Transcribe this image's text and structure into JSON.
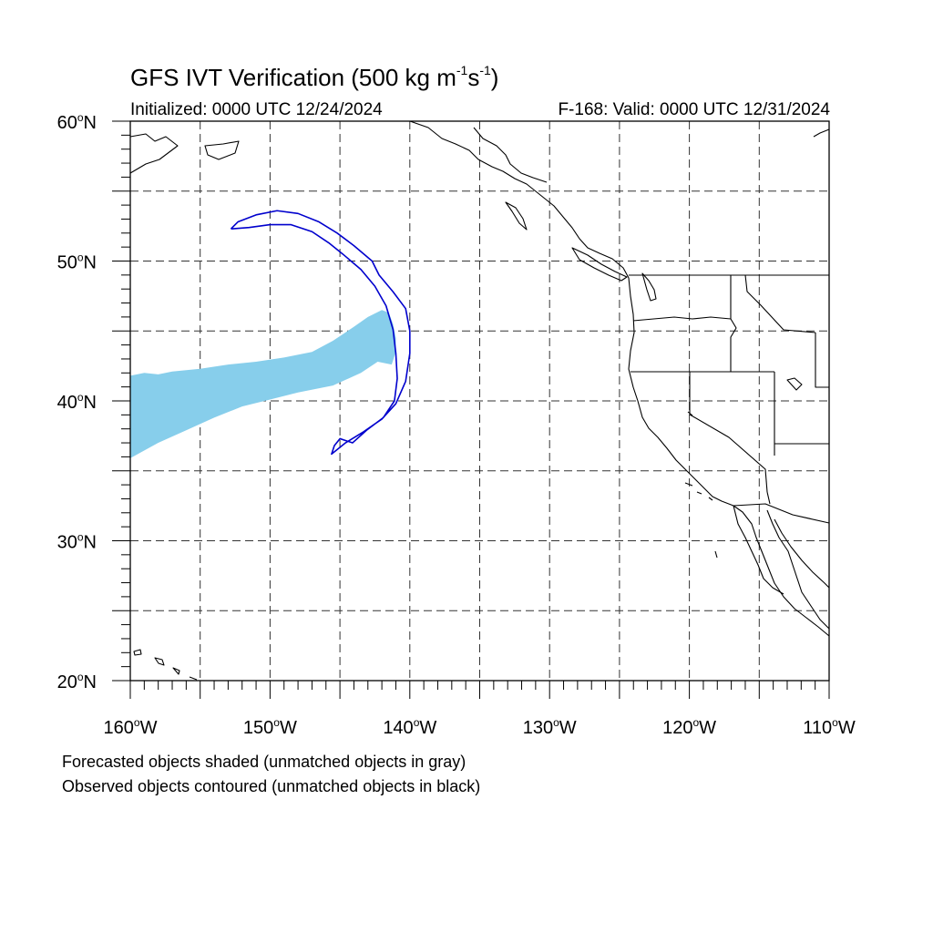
{
  "header": {
    "title_main": "GFS IVT Verification (500 kg m",
    "title_sup1": "-1",
    "title_mid": "s",
    "title_sup2": "-1",
    "title_end": ")",
    "initialized": "Initialized: 0000 UTC 12/24/2024",
    "valid": "F-168: Valid: 0000 UTC 12/31/2024"
  },
  "map": {
    "projection": "cylindrical-equidistant",
    "lon_range": [
      -160,
      -110
    ],
    "lat_range": [
      20,
      60
    ],
    "grid": true,
    "lat_labels": [
      {
        "value": 60,
        "num": "60",
        "hemi": "N"
      },
      {
        "value": 50,
        "num": "50",
        "hemi": "N"
      },
      {
        "value": 40,
        "num": "40",
        "hemi": "N"
      },
      {
        "value": 30,
        "num": "30",
        "hemi": "N"
      },
      {
        "value": 20,
        "num": "20",
        "hemi": "N"
      }
    ],
    "lon_labels": [
      {
        "value": -160,
        "num": "160",
        "hemi": "W"
      },
      {
        "value": -150,
        "num": "150",
        "hemi": "W"
      },
      {
        "value": -140,
        "num": "140",
        "hemi": "W"
      },
      {
        "value": -130,
        "num": "130",
        "hemi": "W"
      },
      {
        "value": -120,
        "num": "120",
        "hemi": "W"
      },
      {
        "value": -110,
        "num": "110",
        "hemi": "W"
      }
    ],
    "forecast_object": {
      "color": "#87ceeb",
      "polygon": [
        [
          -160,
          41.8
        ],
        [
          -159,
          42.0
        ],
        [
          -158,
          41.9
        ],
        [
          -157,
          42.1
        ],
        [
          -155,
          42.3
        ],
        [
          -153,
          42.6
        ],
        [
          -151,
          42.8
        ],
        [
          -149,
          43.1
        ],
        [
          -147,
          43.5
        ],
        [
          -145.5,
          44.3
        ],
        [
          -144,
          45.3
        ],
        [
          -143,
          46.0
        ],
        [
          -142,
          46.5
        ],
        [
          -141.5,
          46.3
        ],
        [
          -141.2,
          45.5
        ],
        [
          -141.0,
          44.5
        ],
        [
          -141.0,
          43.5
        ],
        [
          -141.3,
          42.6
        ],
        [
          -142.3,
          42.8
        ],
        [
          -143.5,
          42.0
        ],
        [
          -145.5,
          41.1
        ],
        [
          -148,
          40.6
        ],
        [
          -150,
          40.1
        ],
        [
          -152,
          39.6
        ],
        [
          -154,
          38.8
        ],
        [
          -156,
          37.9
        ],
        [
          -158,
          37.0
        ],
        [
          -160,
          35.9
        ]
      ]
    },
    "observed_object": {
      "color": "#0000cd",
      "polygon": [
        [
          -152.8,
          52.3
        ],
        [
          -152.3,
          52.8
        ],
        [
          -151.0,
          53.3
        ],
        [
          -149.5,
          53.6
        ],
        [
          -148.0,
          53.4
        ],
        [
          -146.5,
          52.8
        ],
        [
          -145.2,
          52.0
        ],
        [
          -144.0,
          51.1
        ],
        [
          -142.7,
          50.0
        ],
        [
          -142.2,
          49.0
        ],
        [
          -141.2,
          47.8
        ],
        [
          -140.3,
          46.6
        ],
        [
          -140.0,
          45.0
        ],
        [
          -140.0,
          43.4
        ],
        [
          -140.3,
          41.4
        ],
        [
          -141.0,
          39.8
        ],
        [
          -142.0,
          38.7
        ],
        [
          -143.3,
          37.8
        ],
        [
          -144.6,
          37.0
        ],
        [
          -145.6,
          36.2
        ],
        [
          -145.4,
          36.8
        ],
        [
          -145.0,
          37.3
        ],
        [
          -144.1,
          37.0
        ],
        [
          -143.1,
          37.9
        ],
        [
          -141.9,
          38.8
        ],
        [
          -141.1,
          40.0
        ],
        [
          -140.9,
          41.6
        ],
        [
          -141.0,
          43.4
        ],
        [
          -141.2,
          45.1
        ],
        [
          -141.7,
          46.8
        ],
        [
          -142.5,
          48.2
        ],
        [
          -143.5,
          49.4
        ],
        [
          -144.8,
          50.5
        ],
        [
          -145.8,
          51.3
        ],
        [
          -147.0,
          52.1
        ],
        [
          -148.5,
          52.6
        ],
        [
          -150.0,
          52.6
        ],
        [
          -151.5,
          52.4
        ],
        [
          -152.8,
          52.3
        ]
      ]
    }
  },
  "captions": {
    "forecast_note": "Forecasted objects shaded (unmatched objects in gray)",
    "observed_note": "Observed objects contoured (unmatched objects in black)"
  }
}
